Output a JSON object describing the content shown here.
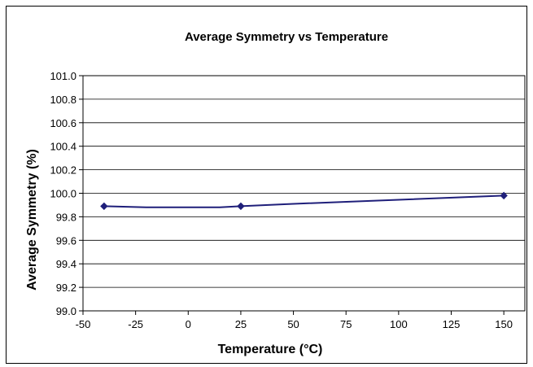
{
  "chart_data": {
    "type": "line",
    "title": "Average Symmetry vs Temperature",
    "xlabel": "Temperature (°C)",
    "ylabel": "Average Symmetry (%)",
    "xlim": [
      -50,
      160
    ],
    "ylim": [
      99.0,
      101.0
    ],
    "x_ticks": [
      "-50",
      "-25",
      "0",
      "25",
      "50",
      "75",
      "100",
      "125",
      "150"
    ],
    "y_ticks": [
      "99.0",
      "99.2",
      "99.4",
      "99.6",
      "99.8",
      "100.0",
      "100.2",
      "100.4",
      "100.6",
      "100.8",
      "101.0"
    ],
    "grid": "horizontal",
    "legend": "none",
    "series": [
      {
        "color": "#1F1F7A",
        "marker": "diamond",
        "line_points": [
          {
            "x": -40,
            "y": 99.89
          },
          {
            "x": -20,
            "y": 99.88
          },
          {
            "x": 15,
            "y": 99.88
          },
          {
            "x": 25,
            "y": 99.89
          },
          {
            "x": 50,
            "y": 99.91
          },
          {
            "x": 150,
            "y": 99.98
          }
        ],
        "marked_points": [
          {
            "x": -40,
            "y": 99.89
          },
          {
            "x": 25,
            "y": 99.89
          },
          {
            "x": 150,
            "y": 99.98
          }
        ]
      }
    ]
  }
}
